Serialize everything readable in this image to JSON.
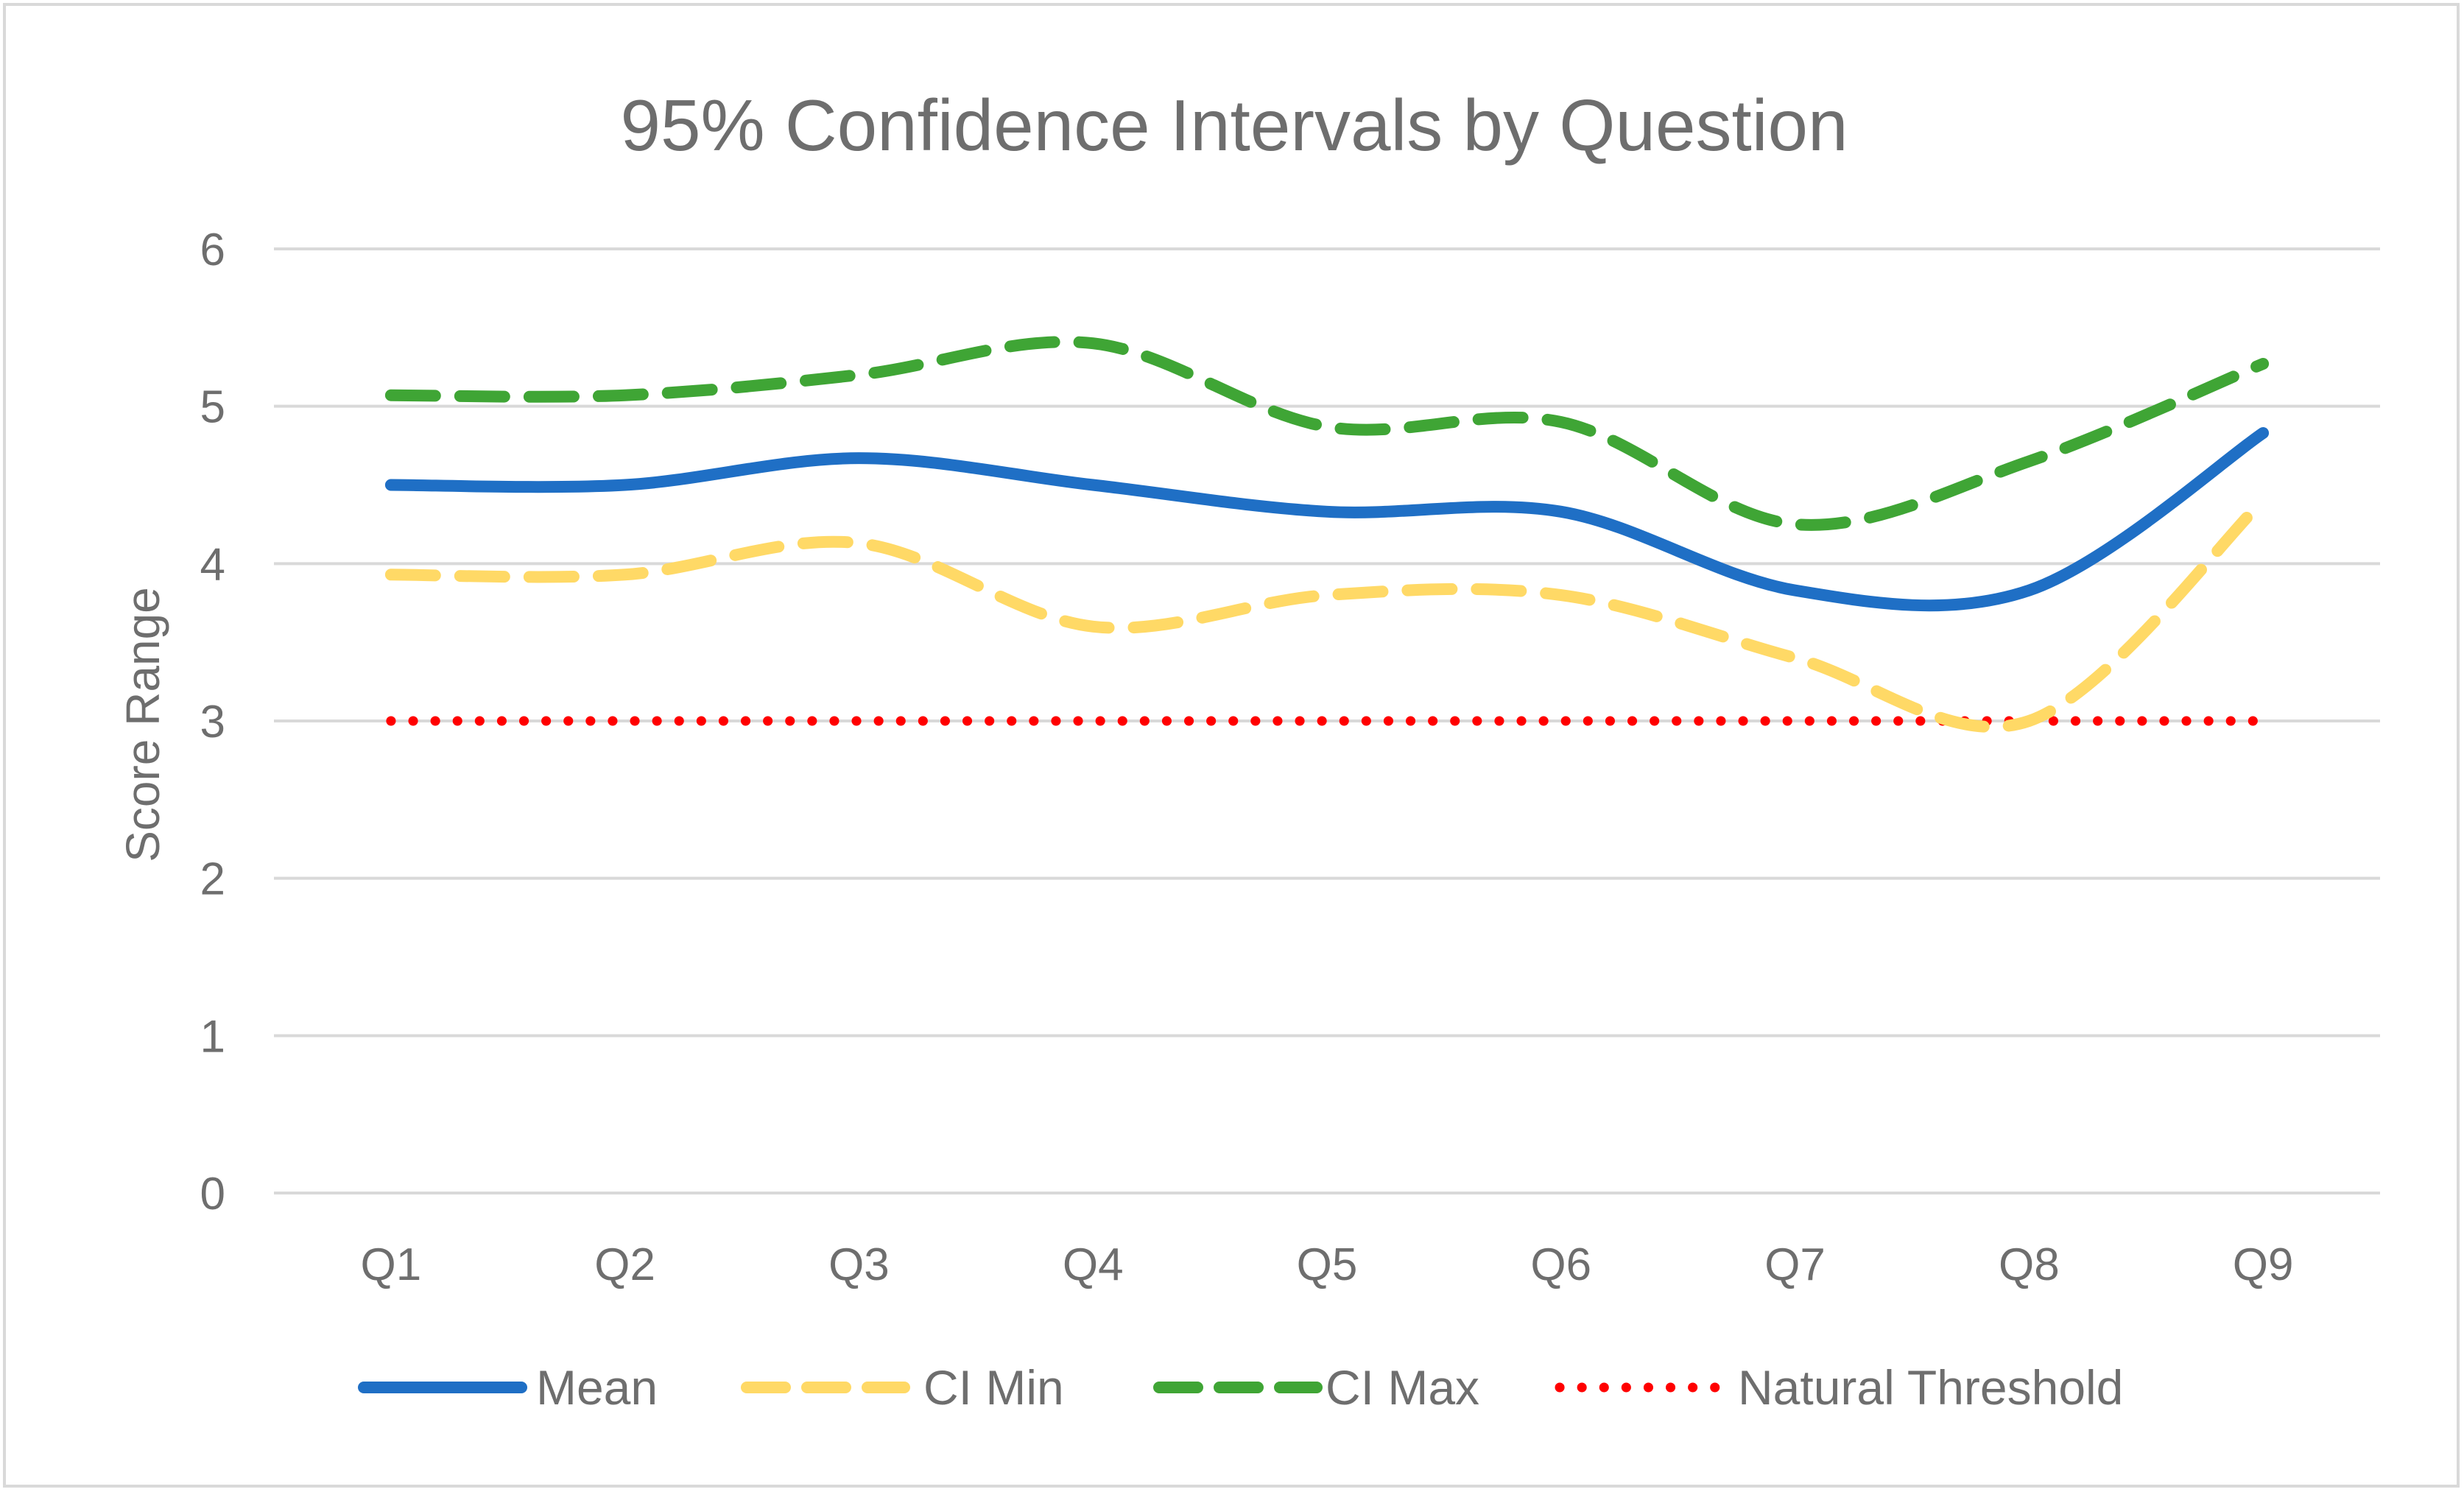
{
  "chart_data": {
    "type": "line",
    "title": "95% Confidence Intervals by Question",
    "xlabel": "",
    "ylabel": "Score Range",
    "ylim": [
      0,
      6
    ],
    "yticks": [
      "0",
      "1",
      "2",
      "3",
      "4",
      "5",
      "6"
    ],
    "categories": [
      "Q1",
      "Q2",
      "Q3",
      "Q4",
      "Q5",
      "Q6",
      "Q7",
      "Q8",
      "Q9"
    ],
    "grid": true,
    "legend_position": "bottom",
    "smooth": true,
    "series": [
      {
        "name": "Mean",
        "values": [
          4.5,
          4.5,
          4.67,
          4.5,
          4.33,
          4.33,
          3.83,
          3.83,
          4.83
        ],
        "color": "#1f6fc5",
        "style": "solid"
      },
      {
        "name": "CI Min",
        "values": [
          3.93,
          3.93,
          4.13,
          3.6,
          3.8,
          3.8,
          3.4,
          3.0,
          4.4
        ],
        "color": "#ffd966",
        "style": "dashed"
      },
      {
        "name": "CI Max",
        "values": [
          5.07,
          5.07,
          5.2,
          5.4,
          4.87,
          4.9,
          4.25,
          4.65,
          5.27
        ],
        "color": "#3fa535",
        "style": "dashed"
      },
      {
        "name": "Natural Threshold",
        "values": [
          3,
          3,
          3,
          3,
          3,
          3,
          3,
          3,
          3
        ],
        "color": "#ff0000",
        "style": "dotted"
      }
    ]
  }
}
